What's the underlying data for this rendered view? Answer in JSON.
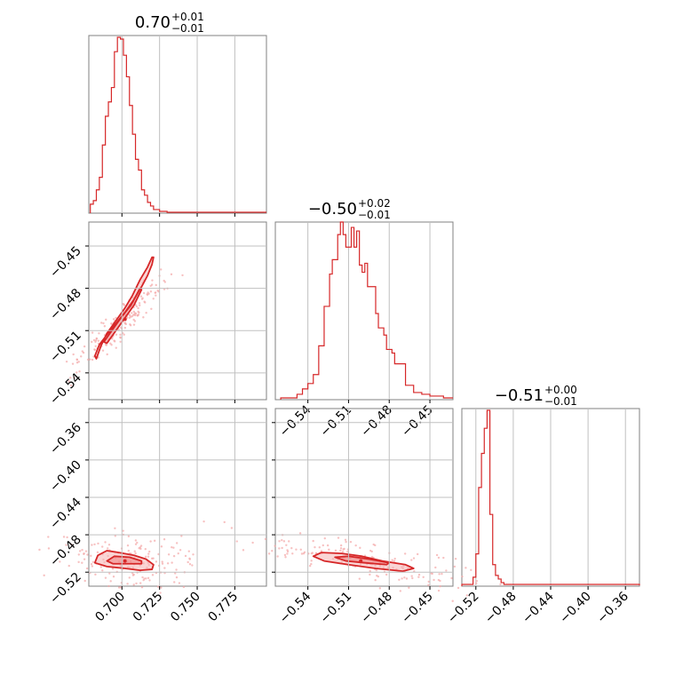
{
  "chart_data": {
    "type": "corner",
    "color": "#d62728",
    "grid": true,
    "panels": {
      "p1_hist": {
        "title_main": "0.70",
        "title_sup": "+0.01",
        "title_sub": "−0.01",
        "xlim": [
          0.678,
          0.796
        ],
        "xticks": [
          0.7,
          0.725,
          0.75,
          0.775
        ],
        "xticklabels": [
          "0.700",
          "0.725",
          "0.750",
          "0.775"
        ],
        "steps": [
          [
            0.679,
            0.05
          ],
          [
            0.681,
            0.07
          ],
          [
            0.683,
            0.13
          ],
          [
            0.685,
            0.2
          ],
          [
            0.687,
            0.38
          ],
          [
            0.689,
            0.54
          ],
          [
            0.691,
            0.62
          ],
          [
            0.693,
            0.7
          ],
          [
            0.695,
            0.9
          ],
          [
            0.697,
            0.98
          ],
          [
            0.699,
            0.97
          ],
          [
            0.701,
            0.88
          ],
          [
            0.703,
            0.76
          ],
          [
            0.705,
            0.6
          ],
          [
            0.707,
            0.44
          ],
          [
            0.709,
            0.3
          ],
          [
            0.711,
            0.24
          ],
          [
            0.713,
            0.13
          ],
          [
            0.715,
            0.1
          ],
          [
            0.717,
            0.06
          ],
          [
            0.719,
            0.04
          ],
          [
            0.721,
            0.02
          ],
          [
            0.725,
            0.01
          ],
          [
            0.73,
            0.005
          ],
          [
            0.796,
            0.005
          ]
        ]
      },
      "p2_hist": {
        "title_main": "−0.50",
        "title_sup": "+0.02",
        "title_sub": "−0.01",
        "xlim": [
          -0.564,
          -0.433
        ],
        "xticks": [
          -0.54,
          -0.51,
          -0.48,
          -0.45
        ],
        "xticklabels": [
          "−0.54",
          "−0.51",
          "−0.48",
          "−0.45"
        ],
        "steps": [
          [
            -0.56,
            0.01
          ],
          [
            -0.548,
            0.03
          ],
          [
            -0.544,
            0.06
          ],
          [
            -0.54,
            0.09
          ],
          [
            -0.536,
            0.14
          ],
          [
            -0.532,
            0.3
          ],
          [
            -0.528,
            0.52
          ],
          [
            -0.524,
            0.7
          ],
          [
            -0.522,
            0.78
          ],
          [
            -0.518,
            0.92
          ],
          [
            -0.516,
            0.99
          ],
          [
            -0.514,
            0.92
          ],
          [
            -0.512,
            0.85
          ],
          [
            -0.508,
            0.96
          ],
          [
            -0.506,
            0.85
          ],
          [
            -0.504,
            0.94
          ],
          [
            -0.502,
            0.75
          ],
          [
            -0.5,
            0.71
          ],
          [
            -0.498,
            0.76
          ],
          [
            -0.496,
            0.63
          ],
          [
            -0.492,
            0.63
          ],
          [
            -0.49,
            0.48
          ],
          [
            -0.488,
            0.4
          ],
          [
            -0.484,
            0.36
          ],
          [
            -0.482,
            0.28
          ],
          [
            -0.478,
            0.26
          ],
          [
            -0.476,
            0.2
          ],
          [
            -0.472,
            0.2
          ],
          [
            -0.468,
            0.08
          ],
          [
            -0.462,
            0.04
          ],
          [
            -0.456,
            0.03
          ],
          [
            -0.45,
            0.02
          ],
          [
            -0.44,
            0.01
          ],
          [
            -0.433,
            0.01
          ]
        ]
      },
      "p3_hist": {
        "title_main": "−0.51",
        "title_sup": "+0.00",
        "title_sub": "−0.01",
        "xlim": [
          -0.535,
          -0.345
        ],
        "xticks": [
          -0.52,
          -0.48,
          -0.44,
          -0.4,
          -0.36
        ],
        "xticklabels": [
          "−0.52",
          "−0.48",
          "−0.44",
          "−0.40",
          "−0.36"
        ],
        "steps": [
          [
            -0.535,
            0.01
          ],
          [
            -0.523,
            0.05
          ],
          [
            -0.52,
            0.18
          ],
          [
            -0.517,
            0.55
          ],
          [
            -0.514,
            0.74
          ],
          [
            -0.511,
            0.88
          ],
          [
            -0.508,
            0.98
          ],
          [
            -0.505,
            0.4
          ],
          [
            -0.502,
            0.12
          ],
          [
            -0.499,
            0.06
          ],
          [
            -0.496,
            0.04
          ],
          [
            -0.493,
            0.02
          ],
          [
            -0.49,
            0.01
          ],
          [
            -0.345,
            0.005
          ]
        ]
      },
      "p12_2d": {
        "xlim": [
          0.678,
          0.796
        ],
        "ylim": [
          -0.559,
          -0.433
        ],
        "yticks": [
          -0.45,
          -0.48,
          -0.51,
          -0.54
        ],
        "yticklabels": [
          "−0.45",
          "−0.48",
          "−0.51",
          "−0.54"
        ],
        "center": [
          0.702,
          -0.502
        ],
        "outer_contour": [
          [
            0.682,
            -0.528
          ],
          [
            0.685,
            -0.52
          ],
          [
            0.69,
            -0.513
          ],
          [
            0.696,
            -0.505
          ],
          [
            0.702,
            -0.497
          ],
          [
            0.708,
            -0.488
          ],
          [
            0.713,
            -0.479
          ],
          [
            0.717,
            -0.471
          ],
          [
            0.72,
            -0.463
          ],
          [
            0.721,
            -0.458
          ],
          [
            0.72,
            -0.458
          ],
          [
            0.717,
            -0.465
          ],
          [
            0.712,
            -0.474
          ],
          [
            0.707,
            -0.485
          ],
          [
            0.702,
            -0.494
          ],
          [
            0.696,
            -0.503
          ],
          [
            0.69,
            -0.512
          ],
          [
            0.686,
            -0.521
          ],
          [
            0.683,
            -0.53
          ]
        ],
        "inner_contour": [
          [
            0.688,
            -0.518
          ],
          [
            0.694,
            -0.509
          ],
          [
            0.7,
            -0.5
          ],
          [
            0.706,
            -0.492
          ],
          [
            0.712,
            -0.48
          ],
          [
            0.713,
            -0.481
          ],
          [
            0.708,
            -0.492
          ],
          [
            0.702,
            -0.501
          ],
          [
            0.696,
            -0.51
          ],
          [
            0.69,
            -0.519
          ]
        ]
      },
      "p13_2d": {
        "xlim": [
          0.678,
          0.796
        ],
        "ylim": [
          -0.535,
          -0.345
        ],
        "yticks": [
          -0.36,
          -0.4,
          -0.44,
          -0.48,
          -0.52
        ],
        "yticklabels": [
          "−0.36",
          "−0.40",
          "−0.44",
          "−0.48",
          "−0.52"
        ],
        "center": [
          0.702,
          -0.508
        ],
        "outer_contour": [
          [
            0.682,
            -0.51
          ],
          [
            0.684,
            -0.502
          ],
          [
            0.69,
            -0.497
          ],
          [
            0.698,
            -0.499
          ],
          [
            0.708,
            -0.502
          ],
          [
            0.716,
            -0.506
          ],
          [
            0.721,
            -0.512
          ],
          [
            0.72,
            -0.517
          ],
          [
            0.712,
            -0.518
          ],
          [
            0.702,
            -0.516
          ],
          [
            0.69,
            -0.514
          ]
        ],
        "inner_contour": [
          [
            0.69,
            -0.508
          ],
          [
            0.695,
            -0.503
          ],
          [
            0.705,
            -0.504
          ],
          [
            0.713,
            -0.508
          ],
          [
            0.713,
            -0.511
          ],
          [
            0.703,
            -0.511
          ],
          [
            0.694,
            -0.511
          ]
        ]
      },
      "p23_2d": {
        "xlim": [
          -0.564,
          -0.433
        ],
        "ylim": [
          -0.535,
          -0.345
        ],
        "center": [
          -0.501,
          -0.508
        ],
        "outer_contour": [
          [
            -0.536,
            -0.503
          ],
          [
            -0.53,
            -0.499
          ],
          [
            -0.515,
            -0.5
          ],
          [
            -0.5,
            -0.503
          ],
          [
            -0.485,
            -0.508
          ],
          [
            -0.468,
            -0.512
          ],
          [
            -0.462,
            -0.516
          ],
          [
            -0.47,
            -0.519
          ],
          [
            -0.49,
            -0.516
          ],
          [
            -0.51,
            -0.512
          ],
          [
            -0.528,
            -0.508
          ]
        ],
        "inner_contour": [
          [
            -0.52,
            -0.504
          ],
          [
            -0.51,
            -0.503
          ],
          [
            -0.495,
            -0.506
          ],
          [
            -0.48,
            -0.51
          ],
          [
            -0.482,
            -0.512
          ],
          [
            -0.498,
            -0.51
          ],
          [
            -0.512,
            -0.508
          ]
        ]
      }
    }
  }
}
